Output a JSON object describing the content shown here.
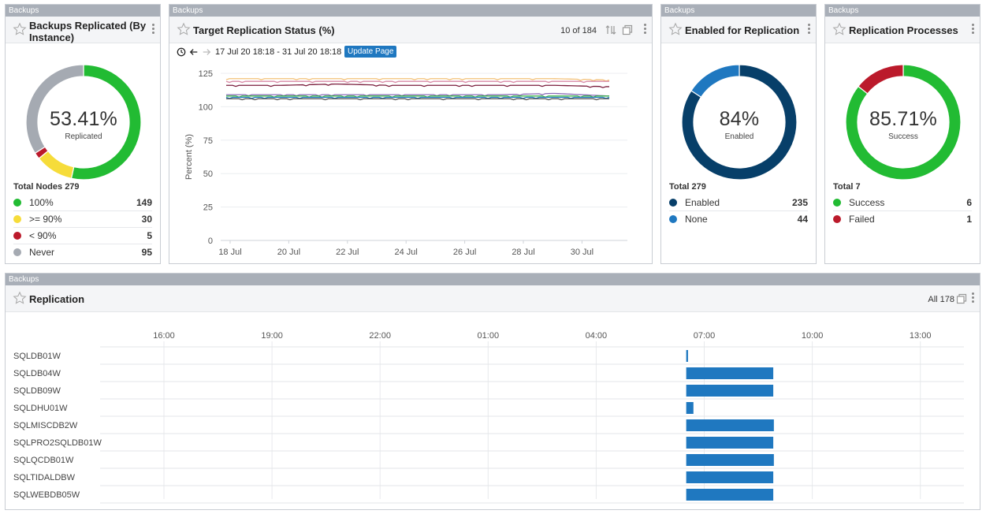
{
  "colors": {
    "green": "#22bb33",
    "yellow": "#f6dc3a",
    "red": "#bb1a2b",
    "gray": "#a5aab2",
    "navy": "#073f69",
    "blue": "#1f78c0",
    "tag": "#a9afb8"
  },
  "panel1": {
    "tag": "Backups",
    "title": "Backups Replicated (By Instance)",
    "percent": "53.41%",
    "caption": "Replicated",
    "total": "Total Nodes 279",
    "legend": [
      {
        "label": "100%",
        "value": "149",
        "color": "#22bb33"
      },
      {
        "label": ">= 90%",
        "value": "30",
        "color": "#f6dc3a"
      },
      {
        "label": "< 90%",
        "value": "5",
        "color": "#bb1a2b"
      },
      {
        "label": "Never",
        "value": "95",
        "color": "#a5aab2"
      }
    ]
  },
  "panel2": {
    "tag": "Backups",
    "title": "Target Replication Status (%)",
    "count": "10 of 184",
    "range": "17 Jul 20 18:18 - 31 Jul 20 18:18",
    "update": "Update Page",
    "ylabel": "Percent (%)",
    "yticks": [
      "125",
      "100",
      "75",
      "50",
      "25",
      "0"
    ],
    "xticks": [
      "18 Jul",
      "20 Jul",
      "22 Jul",
      "24 Jul",
      "26 Jul",
      "28 Jul",
      "30 Jul"
    ]
  },
  "panel3": {
    "tag": "Backups",
    "title": "Enabled for Replication",
    "percent": "84%",
    "caption": "Enabled",
    "total": "Total 279",
    "legend": [
      {
        "label": "Enabled",
        "value": "235",
        "color": "#073f69"
      },
      {
        "label": "None",
        "value": "44",
        "color": "#1f78c0"
      }
    ]
  },
  "panel4": {
    "tag": "Backups",
    "title": "Replication Processes",
    "percent": "85.71%",
    "caption": "Success",
    "total": "Total 7",
    "legend": [
      {
        "label": "Success",
        "value": "6",
        "color": "#22bb33"
      },
      {
        "label": "Failed",
        "value": "1",
        "color": "#bb1a2b"
      }
    ]
  },
  "panel5": {
    "tag": "Backups",
    "title": "Replication",
    "count": "All 178",
    "xticks": [
      "16:00",
      "19:00",
      "22:00",
      "01:00",
      "04:00",
      "07:00",
      "10:00",
      "13:00"
    ],
    "rows": [
      "SQLDB01W",
      "SQLDB04W",
      "SQLDB09W",
      "SQLDHU01W",
      "SQLMISCDB2W",
      "SQLPRO2SQLDB01W",
      "SQLQCDB01W",
      "SQLTIDALDBW",
      "SQLWEBDB05W"
    ]
  },
  "chart_data": [
    {
      "type": "pie",
      "title": "Backups Replicated (By Instance)",
      "categories": [
        "100%",
        ">= 90%",
        "< 90%",
        "Never"
      ],
      "values": [
        149,
        30,
        5,
        95
      ]
    },
    {
      "type": "line",
      "title": "Target Replication Status (%)",
      "ylabel": "Percent (%)",
      "ylim": [
        0,
        125
      ],
      "x": [
        "17 Jul 20 18:18",
        "19 Jul 20 18:18",
        "21 Jul 20 18:18",
        "23 Jul 20 18:18",
        "25 Jul 20 18:18",
        "27 Jul 20 18:18",
        "29 Jul 20 18:18",
        "31 Jul 20 18:18"
      ],
      "series": [
        {
          "color": "#f4c27a",
          "values": [
            121,
            121,
            121,
            121,
            121,
            121,
            121,
            120
          ]
        },
        {
          "color": "#d88aa6",
          "values": [
            119,
            119,
            119,
            119,
            119,
            119,
            119,
            119
          ]
        },
        {
          "color": "#7a1d3c",
          "values": [
            116,
            116,
            117,
            116,
            116,
            116,
            116,
            115
          ]
        },
        {
          "color": "#8a6bb8",
          "values": [
            109,
            109,
            109,
            109,
            109,
            109,
            110,
            108
          ]
        },
        {
          "color": "#38b04a",
          "values": [
            108,
            108,
            108,
            108,
            108,
            108,
            108,
            108
          ]
        },
        {
          "color": "#1f78c0",
          "values": [
            107,
            107,
            107,
            107,
            107,
            107,
            107,
            107
          ]
        },
        {
          "color": "#555555",
          "values": [
            106,
            106,
            106,
            106,
            106,
            106,
            106,
            106
          ]
        }
      ]
    },
    {
      "type": "pie",
      "title": "Enabled for Replication",
      "categories": [
        "Enabled",
        "None"
      ],
      "values": [
        235,
        44
      ]
    },
    {
      "type": "pie",
      "title": "Replication Processes",
      "categories": [
        "Success",
        "Failed"
      ],
      "values": [
        6,
        1
      ]
    },
    {
      "type": "bar",
      "title": "Replication",
      "categories": [
        "SQLDB01W",
        "SQLDB04W",
        "SQLDB09W",
        "SQLDHU01W",
        "SQLMISCDB2W",
        "SQLPRO2SQLDB01W",
        "SQLQCDB01W",
        "SQLTIDALDBW",
        "SQLWEBDB05W"
      ],
      "start": [
        "06:30",
        "06:30",
        "06:30",
        "06:30",
        "06:30",
        "06:30",
        "06:30",
        "06:30",
        "06:30"
      ],
      "end": [
        "06:33",
        "08:55",
        "08:55",
        "06:42",
        "08:56",
        "08:55",
        "08:56",
        "08:55",
        "08:55"
      ]
    }
  ]
}
